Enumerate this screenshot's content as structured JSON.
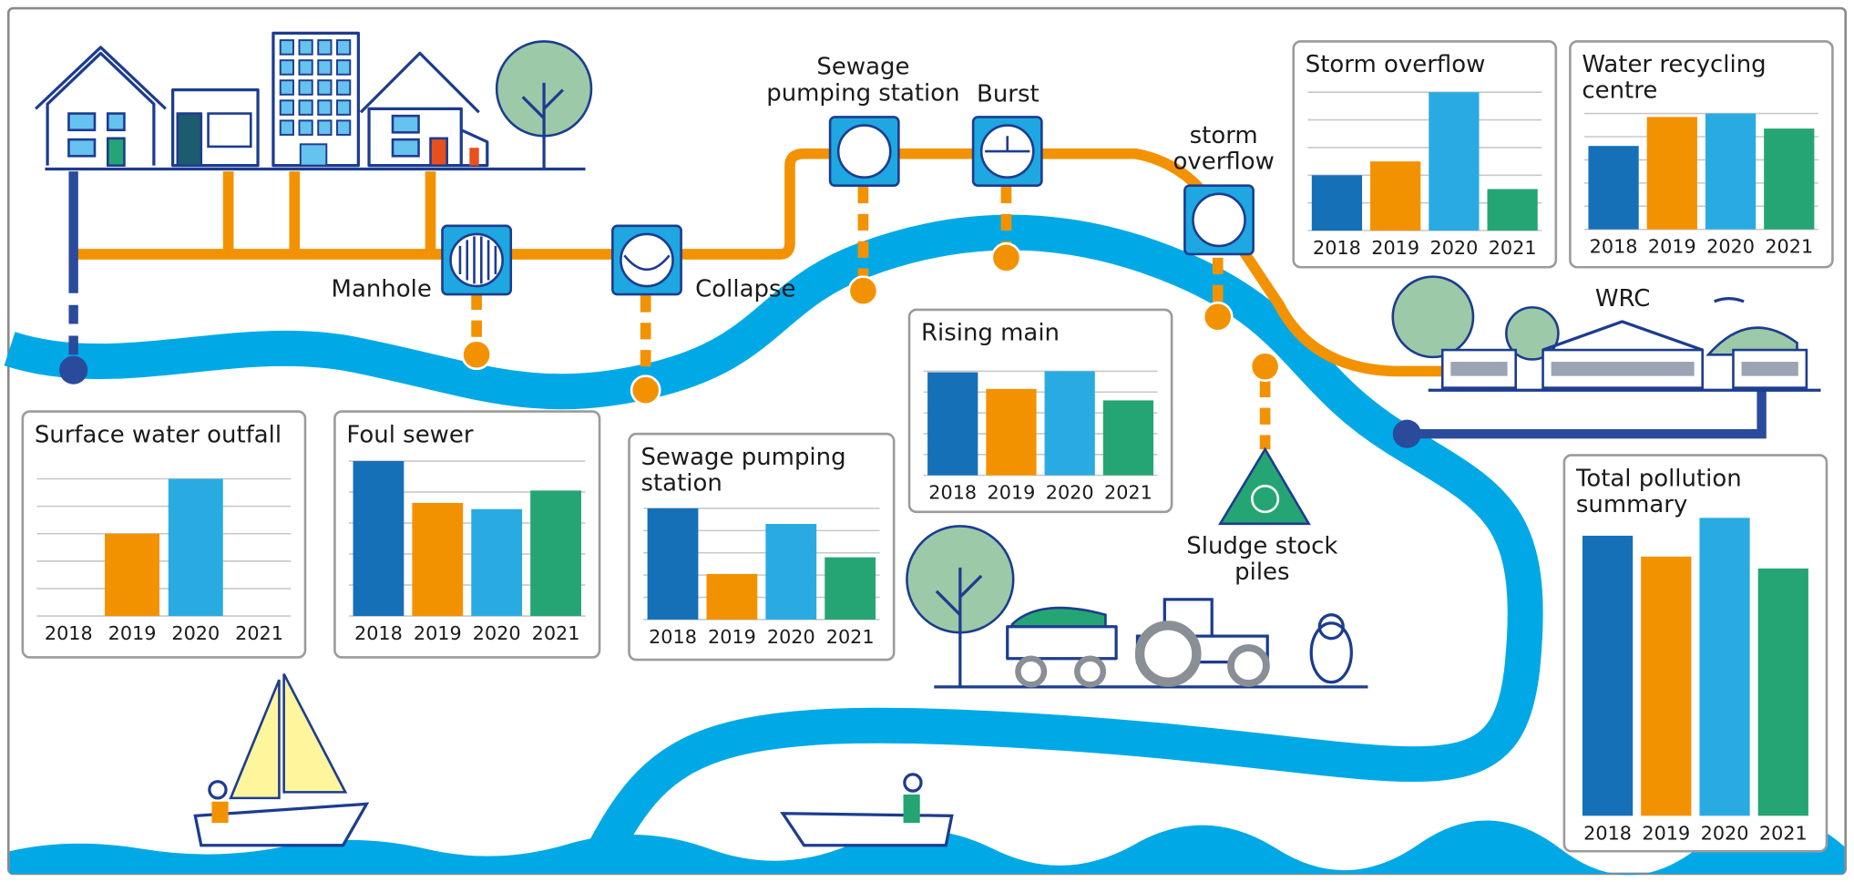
{
  "chart_data": [
    {
      "type": "bar",
      "title": "Surface water outfall",
      "categories": [
        "2018",
        "2019",
        "2020",
        "2021"
      ],
      "values": [
        0,
        60,
        100,
        0
      ],
      "colors": [
        "#1570b8",
        "#f39200",
        "#29abe2",
        "#26a574"
      ],
      "ylim": [
        0,
        100
      ],
      "yticks": [
        0,
        20,
        40,
        60,
        80,
        100
      ],
      "grid": true
    },
    {
      "type": "bar",
      "title": "Foul sewer",
      "categories": [
        "2018",
        "2019",
        "2020",
        "2021"
      ],
      "values": [
        100,
        73,
        69,
        81
      ],
      "colors": [
        "#1570b8",
        "#f39200",
        "#29abe2",
        "#26a574"
      ],
      "ylim": [
        0,
        100
      ],
      "yticks": [
        0,
        20,
        40,
        60,
        80,
        100
      ],
      "grid": true
    },
    {
      "type": "bar",
      "title": "Sewage pumping station",
      "categories": [
        "2018",
        "2019",
        "2020",
        "2021"
      ],
      "values": [
        100,
        41,
        86,
        56
      ],
      "colors": [
        "#1570b8",
        "#f39200",
        "#29abe2",
        "#26a574"
      ],
      "ylim": [
        0,
        100
      ],
      "yticks": [
        0,
        20,
        40,
        60,
        80,
        100
      ],
      "grid": true
    },
    {
      "type": "bar",
      "title": "Rising main",
      "categories": [
        "2018",
        "2019",
        "2020",
        "2021"
      ],
      "values": [
        99,
        83,
        100,
        72
      ],
      "colors": [
        "#1570b8",
        "#f39200",
        "#29abe2",
        "#26a574"
      ],
      "ylim": [
        0,
        100
      ],
      "yticks": [
        0,
        20,
        40,
        60,
        80,
        100
      ],
      "grid": true
    },
    {
      "type": "bar",
      "title": "Storm overflow",
      "categories": [
        "2018",
        "2019",
        "2020",
        "2021"
      ],
      "values": [
        40,
        50,
        100,
        30
      ],
      "colors": [
        "#1570b8",
        "#f39200",
        "#29abe2",
        "#26a574"
      ],
      "ylim": [
        0,
        100
      ],
      "yticks": [
        0,
        20,
        40,
        60,
        80,
        100
      ],
      "grid": true
    },
    {
      "type": "bar",
      "title": "Water recycling centre",
      "categories": [
        "2018",
        "2019",
        "2020",
        "2021"
      ],
      "values": [
        72,
        97,
        100,
        87
      ],
      "colors": [
        "#1570b8",
        "#f39200",
        "#29abe2",
        "#26a574"
      ],
      "ylim": [
        0,
        100
      ],
      "yticks": [
        0,
        20,
        40,
        60,
        80,
        100
      ],
      "grid": true
    },
    {
      "type": "bar",
      "title": "Total pollution summary",
      "categories": [
        "2018",
        "2019",
        "2020",
        "2021"
      ],
      "values": [
        94,
        87,
        100,
        83
      ],
      "colors": [
        "#1570b8",
        "#f39200",
        "#29abe2",
        "#26a574"
      ],
      "ylim": [
        0,
        100
      ],
      "yticks": [
        0,
        20,
        40,
        60,
        80,
        100
      ],
      "grid": false
    }
  ],
  "diagram_labels": [
    "Manhole",
    "Collapse",
    "Sewage pumping station",
    "Burst",
    "storm overflow",
    "WRC",
    "Sludge stock piles"
  ]
}
